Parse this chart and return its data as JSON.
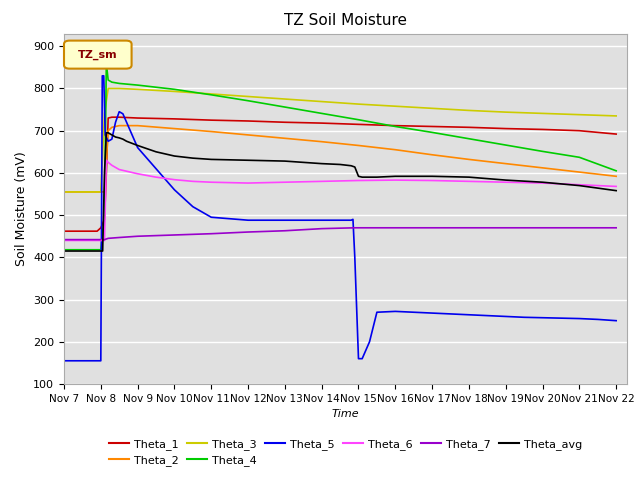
{
  "title": "TZ Soil Moisture",
  "xlabel": "Time",
  "ylabel": "Soil Moisture (mV)",
  "ylim": [
    100,
    930
  ],
  "xlim": [
    7,
    22.3
  ],
  "bg_color": "#e0e0e0",
  "fig_color": "#ffffff",
  "legend_box_label": "TZ_sm",
  "legend_box_color": "#ffffcc",
  "legend_box_border": "#cc8800",
  "series": {
    "Theta_1": {
      "color": "#cc0000",
      "points": [
        [
          7.0,
          462
        ],
        [
          7.5,
          462
        ],
        [
          7.9,
          462
        ],
        [
          8.0,
          470
        ],
        [
          8.1,
          490
        ],
        [
          8.15,
          600
        ],
        [
          8.2,
          730
        ],
        [
          8.3,
          732
        ],
        [
          8.5,
          732
        ],
        [
          9.0,
          730
        ],
        [
          10.0,
          728
        ],
        [
          11.0,
          725
        ],
        [
          12.0,
          723
        ],
        [
          13.0,
          720
        ],
        [
          14.0,
          718
        ],
        [
          15.0,
          715
        ],
        [
          16.0,
          712
        ],
        [
          17.0,
          710
        ],
        [
          18.0,
          708
        ],
        [
          19.0,
          705
        ],
        [
          20.0,
          703
        ],
        [
          21.0,
          700
        ],
        [
          22.0,
          692
        ]
      ]
    },
    "Theta_2": {
      "color": "#ff8800",
      "points": [
        [
          7.0,
          555
        ],
        [
          7.5,
          555
        ],
        [
          7.9,
          555
        ],
        [
          8.0,
          555
        ],
        [
          8.1,
          555
        ],
        [
          8.2,
          700
        ],
        [
          8.3,
          708
        ],
        [
          8.5,
          712
        ],
        [
          9.0,
          712
        ],
        [
          10.0,
          705
        ],
        [
          11.0,
          698
        ],
        [
          12.0,
          690
        ],
        [
          13.0,
          682
        ],
        [
          14.0,
          674
        ],
        [
          15.0,
          665
        ],
        [
          16.0,
          655
        ],
        [
          17.0,
          643
        ],
        [
          18.0,
          632
        ],
        [
          19.0,
          622
        ],
        [
          20.0,
          612
        ],
        [
          21.0,
          602
        ],
        [
          22.0,
          592
        ]
      ]
    },
    "Theta_3": {
      "color": "#cccc00",
      "points": [
        [
          7.0,
          555
        ],
        [
          7.5,
          555
        ],
        [
          7.9,
          555
        ],
        [
          8.0,
          555
        ],
        [
          8.1,
          740
        ],
        [
          8.2,
          800
        ],
        [
          8.3,
          800
        ],
        [
          8.5,
          800
        ],
        [
          9.0,
          798
        ],
        [
          10.0,
          793
        ],
        [
          11.0,
          787
        ],
        [
          12.0,
          781
        ],
        [
          13.0,
          775
        ],
        [
          14.0,
          769
        ],
        [
          15.0,
          763
        ],
        [
          16.0,
          758
        ],
        [
          17.0,
          753
        ],
        [
          18.0,
          748
        ],
        [
          19.0,
          744
        ],
        [
          20.0,
          741
        ],
        [
          21.0,
          738
        ],
        [
          22.0,
          735
        ]
      ]
    },
    "Theta_4": {
      "color": "#00cc00",
      "points": [
        [
          7.0,
          418
        ],
        [
          7.5,
          418
        ],
        [
          7.9,
          418
        ],
        [
          8.0,
          418
        ],
        [
          8.1,
          500
        ],
        [
          8.15,
          860
        ],
        [
          8.2,
          820
        ],
        [
          8.3,
          815
        ],
        [
          8.5,
          812
        ],
        [
          9.0,
          808
        ],
        [
          10.0,
          798
        ],
        [
          11.0,
          785
        ],
        [
          12.0,
          771
        ],
        [
          13.0,
          756
        ],
        [
          14.0,
          741
        ],
        [
          15.0,
          726
        ],
        [
          16.0,
          710
        ],
        [
          17.0,
          696
        ],
        [
          18.0,
          681
        ],
        [
          19.0,
          666
        ],
        [
          20.0,
          651
        ],
        [
          21.0,
          637
        ],
        [
          22.0,
          605
        ]
      ]
    },
    "Theta_5": {
      "color": "#0000ee",
      "points": [
        [
          7.0,
          155
        ],
        [
          7.5,
          155
        ],
        [
          7.9,
          155
        ],
        [
          8.0,
          155
        ],
        [
          8.04,
          830
        ],
        [
          8.08,
          830
        ],
        [
          8.12,
          690
        ],
        [
          8.2,
          675
        ],
        [
          8.3,
          680
        ],
        [
          8.4,
          720
        ],
        [
          8.5,
          745
        ],
        [
          8.6,
          740
        ],
        [
          8.7,
          720
        ],
        [
          8.8,
          700
        ],
        [
          9.0,
          660
        ],
        [
          9.5,
          610
        ],
        [
          10.0,
          560
        ],
        [
          10.5,
          520
        ],
        [
          11.0,
          495
        ],
        [
          12.0,
          488
        ],
        [
          13.0,
          488
        ],
        [
          14.0,
          488
        ],
        [
          14.5,
          488
        ],
        [
          14.8,
          488
        ],
        [
          14.85,
          490
        ],
        [
          14.9,
          400
        ],
        [
          15.0,
          160
        ],
        [
          15.1,
          160
        ],
        [
          15.3,
          200
        ],
        [
          15.5,
          270
        ],
        [
          16.0,
          272
        ],
        [
          16.5,
          270
        ],
        [
          17.0,
          268
        ],
        [
          17.5,
          266
        ],
        [
          18.0,
          264
        ],
        [
          18.5,
          262
        ],
        [
          19.0,
          260
        ],
        [
          19.5,
          258
        ],
        [
          20.0,
          257
        ],
        [
          20.5,
          256
        ],
        [
          21.0,
          255
        ],
        [
          21.5,
          253
        ],
        [
          22.0,
          250
        ]
      ]
    },
    "Theta_6": {
      "color": "#ff44ff",
      "points": [
        [
          7.0,
          440
        ],
        [
          7.5,
          440
        ],
        [
          7.9,
          440
        ],
        [
          8.0,
          440
        ],
        [
          8.1,
          440
        ],
        [
          8.15,
          630
        ],
        [
          8.2,
          625
        ],
        [
          8.3,
          618
        ],
        [
          8.5,
          608
        ],
        [
          9.0,
          598
        ],
        [
          9.5,
          590
        ],
        [
          10.0,
          584
        ],
        [
          10.5,
          580
        ],
        [
          11.0,
          578
        ],
        [
          12.0,
          576
        ],
        [
          13.0,
          578
        ],
        [
          14.0,
          580
        ],
        [
          15.0,
          582
        ],
        [
          16.0,
          583
        ],
        [
          17.0,
          582
        ],
        [
          18.0,
          580
        ],
        [
          19.0,
          578
        ],
        [
          20.0,
          576
        ],
        [
          21.0,
          572
        ],
        [
          22.0,
          568
        ]
      ]
    },
    "Theta_7": {
      "color": "#9900cc",
      "points": [
        [
          7.0,
          442
        ],
        [
          7.5,
          442
        ],
        [
          7.9,
          442
        ],
        [
          8.0,
          442
        ],
        [
          8.1,
          442
        ],
        [
          8.2,
          445
        ],
        [
          8.5,
          447
        ],
        [
          9.0,
          450
        ],
        [
          10.0,
          453
        ],
        [
          11.0,
          456
        ],
        [
          12.0,
          460
        ],
        [
          13.0,
          463
        ],
        [
          14.0,
          468
        ],
        [
          14.9,
          470
        ],
        [
          15.0,
          470
        ],
        [
          16.0,
          470
        ],
        [
          17.0,
          470
        ],
        [
          18.0,
          470
        ],
        [
          19.0,
          470
        ],
        [
          20.0,
          470
        ],
        [
          21.0,
          470
        ],
        [
          22.0,
          470
        ]
      ]
    },
    "Theta_avg": {
      "color": "#000000",
      "points": [
        [
          7.0,
          415
        ],
        [
          7.5,
          415
        ],
        [
          7.9,
          415
        ],
        [
          8.0,
          415
        ],
        [
          8.05,
          415
        ],
        [
          8.1,
          600
        ],
        [
          8.15,
          695
        ],
        [
          8.2,
          695
        ],
        [
          8.3,
          690
        ],
        [
          8.4,
          685
        ],
        [
          8.5,
          683
        ],
        [
          8.6,
          680
        ],
        [
          8.7,
          675
        ],
        [
          9.0,
          665
        ],
        [
          9.5,
          650
        ],
        [
          10.0,
          640
        ],
        [
          10.5,
          635
        ],
        [
          11.0,
          632
        ],
        [
          12.0,
          630
        ],
        [
          13.0,
          628
        ],
        [
          13.5,
          625
        ],
        [
          14.0,
          622
        ],
        [
          14.5,
          620
        ],
        [
          14.8,
          617
        ],
        [
          14.9,
          614
        ],
        [
          15.0,
          592
        ],
        [
          15.1,
          590
        ],
        [
          15.5,
          590
        ],
        [
          16.0,
          592
        ],
        [
          17.0,
          592
        ],
        [
          18.0,
          590
        ],
        [
          19.0,
          583
        ],
        [
          20.0,
          578
        ],
        [
          21.0,
          570
        ],
        [
          22.0,
          558
        ]
      ]
    }
  },
  "xtick_labels": [
    "Nov 7",
    "Nov 8",
    "Nov 9",
    "Nov 10",
    "Nov 11",
    "Nov 12",
    "Nov 13",
    "Nov 14",
    "Nov 15",
    "Nov 16",
    "Nov 17",
    "Nov 18",
    "Nov 19",
    "Nov 20",
    "Nov 21",
    "Nov 22"
  ],
  "xtick_positions": [
    7,
    8,
    9,
    10,
    11,
    12,
    13,
    14,
    15,
    16,
    17,
    18,
    19,
    20,
    21,
    22
  ],
  "ytick_positions": [
    100,
    200,
    300,
    400,
    500,
    600,
    700,
    800,
    900
  ]
}
